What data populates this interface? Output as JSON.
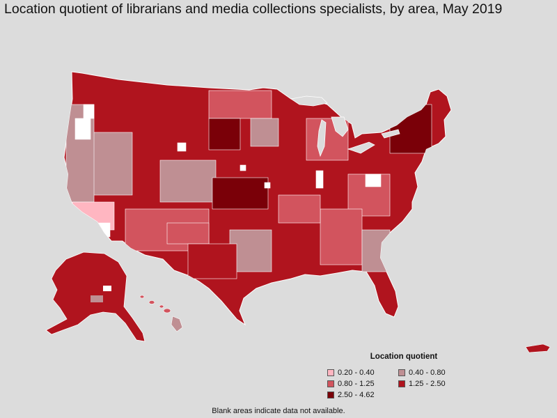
{
  "title": "Location quotient of librarians and media collections specialists, by area, May 2019",
  "legend": {
    "title": "Location quotient",
    "items": [
      {
        "label": "0.20 - 0.40",
        "color": "#ffb6c1"
      },
      {
        "label": "0.40 - 0.80",
        "color": "#bf8f93"
      },
      {
        "label": "0.80 - 1.25",
        "color": "#d2545e"
      },
      {
        "label": "1.25 - 2.50",
        "color": "#b0141e"
      },
      {
        "label": "2.50 - 4.62",
        "color": "#7a0008"
      }
    ]
  },
  "footnote": "Blank areas indicate data not available.",
  "colors": {
    "background": "#dcdcdc",
    "no_data": "#ffffff",
    "border": "#ffffff"
  }
}
